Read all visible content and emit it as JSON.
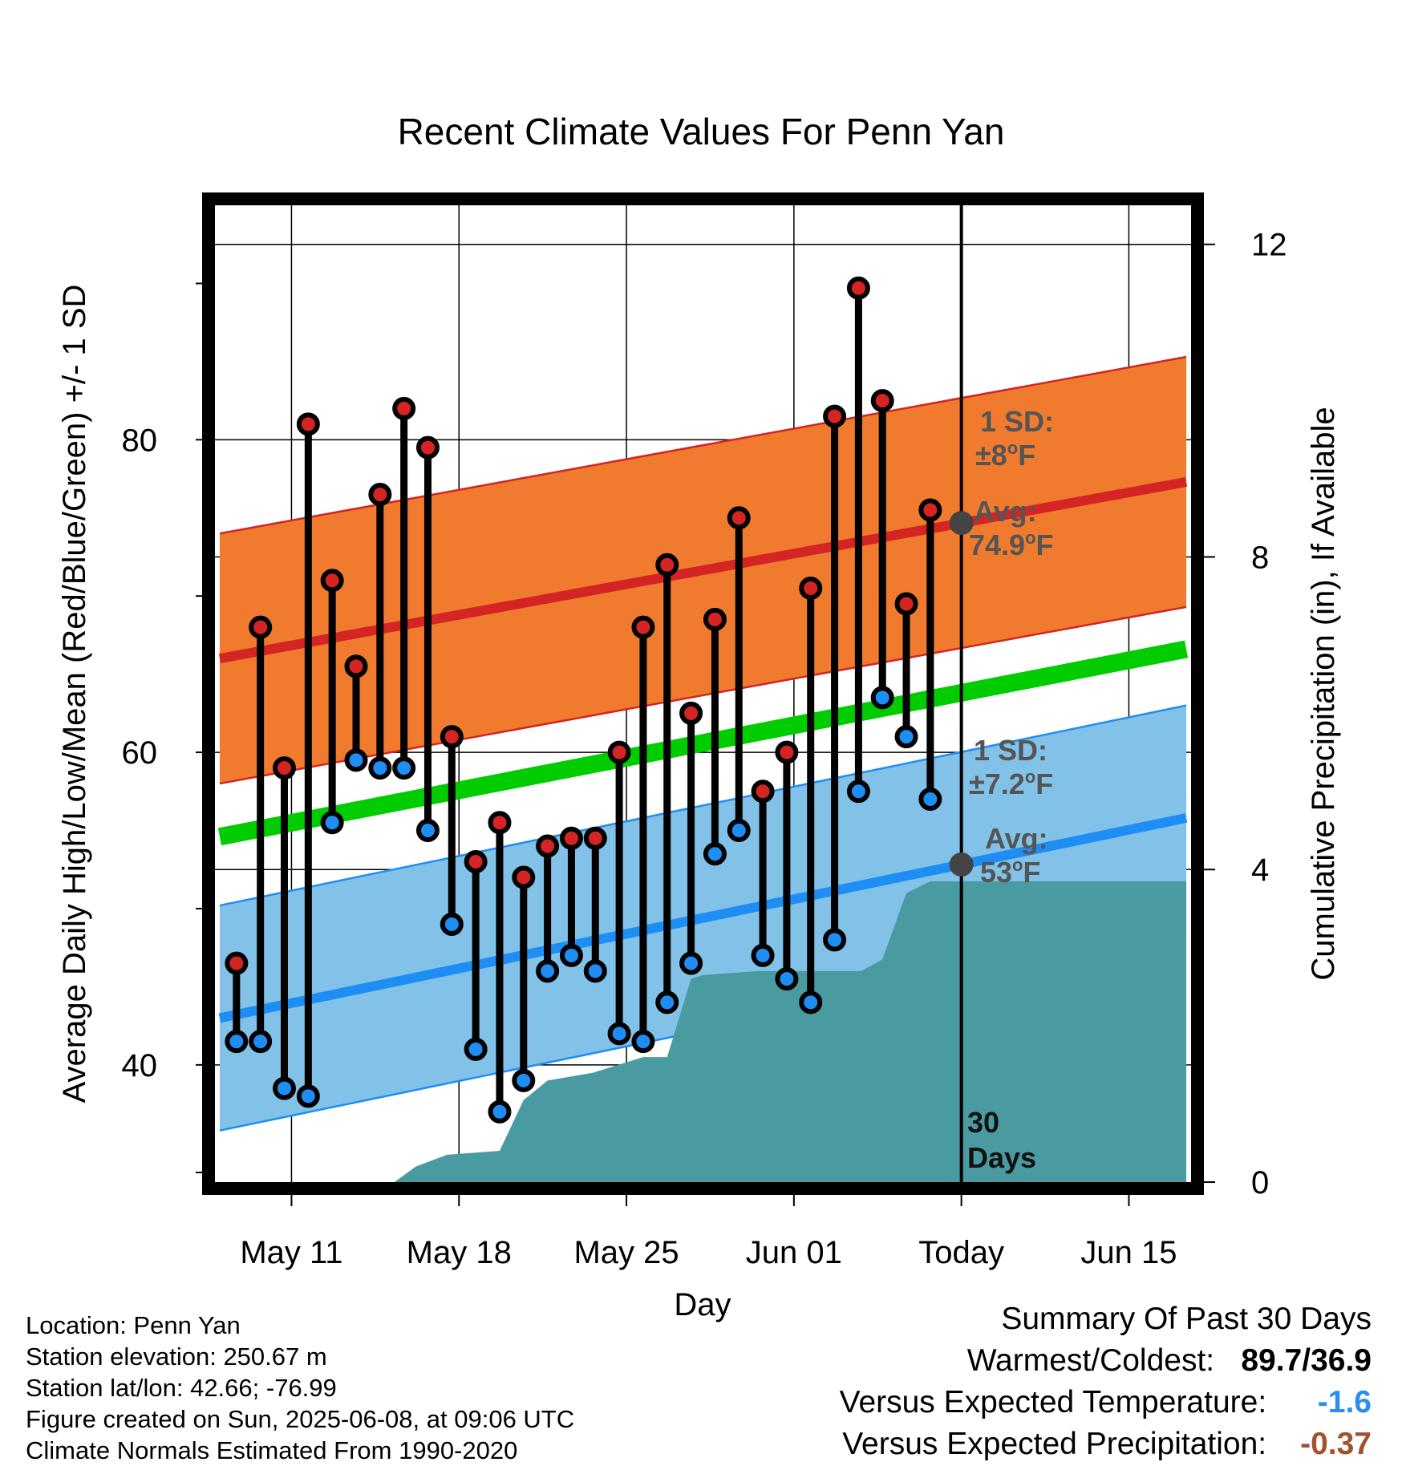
{
  "chart_data": {
    "type": "line",
    "title": "Recent Climate Values For Penn Yan",
    "xlabel": "Day",
    "ylabel": "Average Daily High/Low/Mean (Red/Blue/Green) +/- 1 SD",
    "y2label": "Cumulative Precipitation (in), If Available",
    "x_tick_labels": [
      "May 11",
      "May 18",
      "May 25",
      "Jun 01",
      "Today",
      "Jun 15"
    ],
    "x_tick_days": [
      3,
      10,
      17,
      24,
      31,
      38
    ],
    "xlim_days": [
      -0.2,
      40.6
    ],
    "ylim": [
      32.5,
      95
    ],
    "y_ticks_labeled": [
      40,
      60,
      80
    ],
    "y_ticks_minor": [
      30,
      50,
      70,
      90
    ],
    "y2lim": [
      0,
      12.5
    ],
    "y2_ticks": [
      0,
      4,
      8,
      12
    ],
    "grid": true,
    "daily_high_low": [
      {
        "day": 0.7,
        "high": 46.5,
        "low": 41.5
      },
      {
        "day": 1.7,
        "high": 68.0,
        "low": 41.5
      },
      {
        "day": 2.7,
        "high": 59.0,
        "low": 38.5
      },
      {
        "day": 3.7,
        "high": 81.0,
        "low": 38.0
      },
      {
        "day": 4.7,
        "high": 71.0,
        "low": 55.5
      },
      {
        "day": 5.7,
        "high": 65.5,
        "low": 59.5
      },
      {
        "day": 6.7,
        "high": 76.5,
        "low": 59.0
      },
      {
        "day": 7.7,
        "high": 82.0,
        "low": 59.0
      },
      {
        "day": 8.7,
        "high": 79.5,
        "low": 55.0
      },
      {
        "day": 9.7,
        "high": 61.0,
        "low": 49.0
      },
      {
        "day": 10.7,
        "high": 53.0,
        "low": 41.0
      },
      {
        "day": 11.7,
        "high": 55.5,
        "low": 37.0
      },
      {
        "day": 12.7,
        "high": 52.0,
        "low": 39.0
      },
      {
        "day": 13.7,
        "high": 54.0,
        "low": 46.0
      },
      {
        "day": 14.7,
        "high": 54.5,
        "low": 47.0
      },
      {
        "day": 15.7,
        "high": 54.5,
        "low": 46.0
      },
      {
        "day": 16.7,
        "high": 60.0,
        "low": 42.0
      },
      {
        "day": 17.7,
        "high": 68.0,
        "low": 41.5
      },
      {
        "day": 18.7,
        "high": 72.0,
        "low": 44.0
      },
      {
        "day": 19.7,
        "high": 62.5,
        "low": 46.5
      },
      {
        "day": 20.7,
        "high": 68.5,
        "low": 53.5
      },
      {
        "day": 21.7,
        "high": 75.0,
        "low": 55.0
      },
      {
        "day": 22.7,
        "high": 57.5,
        "low": 47.0
      },
      {
        "day": 23.7,
        "high": 60.0,
        "low": 45.5
      },
      {
        "day": 24.7,
        "high": 70.5,
        "low": 44.0
      },
      {
        "day": 25.7,
        "high": 81.5,
        "low": 48.0
      },
      {
        "day": 26.7,
        "high": 89.7,
        "low": 57.5
      },
      {
        "day": 27.7,
        "high": 82.5,
        "low": 63.5
      },
      {
        "day": 28.7,
        "high": 69.5,
        "low": 61.0
      },
      {
        "day": 29.7,
        "high": 75.5,
        "low": 57.0
      }
    ],
    "normal_high": {
      "x": [
        0,
        40.4
      ],
      "y": [
        66.0,
        77.3
      ]
    },
    "normal_high_sd": 8,
    "normal_low": {
      "x": [
        0,
        40.4
      ],
      "y": [
        43.0,
        55.8
      ]
    },
    "normal_low_sd": 7.2,
    "normal_mean": {
      "x": [
        0,
        40.4
      ],
      "y": [
        54.6,
        66.6
      ]
    },
    "cumulative_precip": {
      "x": [
        0,
        7.3,
        8.2,
        9.5,
        11.7,
        12.7,
        13.7,
        15.6,
        17.7,
        18.7,
        19.7,
        20.2,
        22.5,
        24.3,
        25.5,
        26.8,
        27.7,
        28.7,
        29.7,
        31.0,
        40.4
      ],
      "y": [
        0.0,
        0.0,
        0.2,
        0.35,
        0.4,
        1.05,
        1.3,
        1.4,
        1.6,
        1.6,
        2.6,
        2.65,
        2.7,
        2.7,
        2.7,
        2.7,
        2.85,
        3.7,
        3.85,
        3.85,
        3.85
      ]
    },
    "annotations": {
      "high_sd": {
        "line1": "1 SD:",
        "line2": "±8",
        "unit": "F"
      },
      "high_avg": {
        "line1": "Avg:",
        "line2": "74.9",
        "unit": "F"
      },
      "low_sd": {
        "line1": "1 SD:",
        "line2": "±7.2",
        "unit": "F"
      },
      "low_avg": {
        "line1": "Avg:",
        "line2": "53",
        "unit": "F"
      },
      "days": {
        "line1": "30",
        "line2": "Days"
      }
    },
    "today_day": 31,
    "colors": {
      "high_band": "#f07a2e",
      "high_line": "#d42424",
      "low_band": "#82c2e8",
      "low_line": "#1e8ef5",
      "mean_line": "#00cc00",
      "precip": "#4a9aa2",
      "high_marker": "#d42424",
      "low_marker": "#1e8ef5",
      "annotation_text": "#555555"
    }
  },
  "info": {
    "location": "Location: Penn Yan",
    "elevation": "Station elevation: 250.67 m",
    "latlon": "Station lat/lon: 42.66; -76.99",
    "created": "Figure created on Sun, 2025-06-08, at 09:06 UTC",
    "normals": "Climate Normals Estimated From 1990-2020"
  },
  "summary": {
    "title": "Summary Of Past 30 Days",
    "warm_cold_label": "Warmest/Coldest:",
    "warm_cold_value": "89.7/36.9",
    "temp_label": "Versus Expected Temperature:",
    "temp_value": "-1.6",
    "temp_color": "#2a8ef0",
    "precip_label": "Versus Expected Precipitation:",
    "precip_value": "-0.37",
    "precip_color": "#a0522d"
  }
}
